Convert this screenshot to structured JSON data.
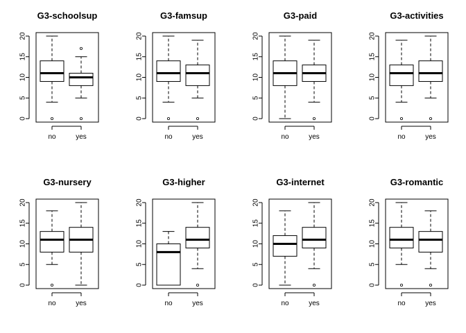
{
  "chart_data": [
    {
      "type": "boxplot",
      "title": "G3-schoolsup",
      "categories": [
        "no",
        "yes"
      ],
      "ylim": [
        0,
        20
      ],
      "yticks": [
        0,
        5,
        10,
        15,
        20
      ],
      "boxes": [
        {
          "category": "no",
          "whisker_low": 4,
          "q1": 9,
          "median": 11,
          "q3": 14,
          "whisker_high": 20,
          "outliers": [
            0
          ]
        },
        {
          "category": "yes",
          "whisker_low": 5,
          "q1": 8,
          "median": 10,
          "q3": 11,
          "whisker_high": 15,
          "outliers": [
            0,
            17
          ]
        }
      ]
    },
    {
      "type": "boxplot",
      "title": "G3-famsup",
      "categories": [
        "no",
        "yes"
      ],
      "ylim": [
        0,
        20
      ],
      "yticks": [
        0,
        5,
        10,
        15,
        20
      ],
      "boxes": [
        {
          "category": "no",
          "whisker_low": 4,
          "q1": 9,
          "median": 11,
          "q3": 14,
          "whisker_high": 20,
          "outliers": [
            0
          ]
        },
        {
          "category": "yes",
          "whisker_low": 5,
          "q1": 8,
          "median": 11,
          "q3": 13,
          "whisker_high": 19,
          "outliers": [
            0
          ]
        }
      ]
    },
    {
      "type": "boxplot",
      "title": "G3-paid",
      "categories": [
        "no",
        "yes"
      ],
      "ylim": [
        0,
        20
      ],
      "yticks": [
        0,
        5,
        10,
        15,
        20
      ],
      "boxes": [
        {
          "category": "no",
          "whisker_low": 0,
          "q1": 8,
          "median": 11,
          "q3": 14,
          "whisker_high": 20,
          "outliers": []
        },
        {
          "category": "yes",
          "whisker_low": 4,
          "q1": 9,
          "median": 11,
          "q3": 13,
          "whisker_high": 19,
          "outliers": [
            0
          ]
        }
      ]
    },
    {
      "type": "boxplot",
      "title": "G3-activities",
      "categories": [
        "no",
        "yes"
      ],
      "ylim": [
        0,
        20
      ],
      "yticks": [
        0,
        5,
        10,
        15,
        20
      ],
      "boxes": [
        {
          "category": "no",
          "whisker_low": 4,
          "q1": 8,
          "median": 11,
          "q3": 13,
          "whisker_high": 19,
          "outliers": [
            0
          ]
        },
        {
          "category": "yes",
          "whisker_low": 5,
          "q1": 9,
          "median": 11,
          "q3": 14,
          "whisker_high": 20,
          "outliers": [
            0
          ]
        }
      ]
    },
    {
      "type": "boxplot",
      "title": "G3-nursery",
      "categories": [
        "no",
        "yes"
      ],
      "ylim": [
        0,
        20
      ],
      "yticks": [
        0,
        5,
        10,
        15,
        20
      ],
      "boxes": [
        {
          "category": "no",
          "whisker_low": 5,
          "q1": 8,
          "median": 11,
          "q3": 13,
          "whisker_high": 18,
          "outliers": [
            0
          ]
        },
        {
          "category": "yes",
          "whisker_low": 0,
          "q1": 8,
          "median": 11,
          "q3": 14,
          "whisker_high": 20,
          "outliers": []
        }
      ]
    },
    {
      "type": "boxplot",
      "title": "G3-higher",
      "categories": [
        "no",
        "yes"
      ],
      "ylim": [
        0,
        20
      ],
      "yticks": [
        0,
        5,
        10,
        15,
        20
      ],
      "boxes": [
        {
          "category": "no",
          "whisker_low": 0,
          "q1": 0,
          "median": 8,
          "q3": 10,
          "whisker_high": 13,
          "outliers": []
        },
        {
          "category": "yes",
          "whisker_low": 4,
          "q1": 9,
          "median": 11,
          "q3": 14,
          "whisker_high": 20,
          "outliers": [
            0
          ]
        }
      ]
    },
    {
      "type": "boxplot",
      "title": "G3-internet",
      "categories": [
        "no",
        "yes"
      ],
      "ylim": [
        0,
        20
      ],
      "yticks": [
        0,
        5,
        10,
        15,
        20
      ],
      "boxes": [
        {
          "category": "no",
          "whisker_low": 0,
          "q1": 7,
          "median": 10,
          "q3": 12,
          "whisker_high": 18,
          "outliers": []
        },
        {
          "category": "yes",
          "whisker_low": 4,
          "q1": 9,
          "median": 11,
          "q3": 14,
          "whisker_high": 20,
          "outliers": [
            0
          ]
        }
      ]
    },
    {
      "type": "boxplot",
      "title": "G3-romantic",
      "categories": [
        "no",
        "yes"
      ],
      "ylim": [
        0,
        20
      ],
      "yticks": [
        0,
        5,
        10,
        15,
        20
      ],
      "boxes": [
        {
          "category": "no",
          "whisker_low": 5,
          "q1": 9,
          "median": 11,
          "q3": 14,
          "whisker_high": 20,
          "outliers": [
            0
          ]
        },
        {
          "category": "yes",
          "whisker_low": 4,
          "q1": 8,
          "median": 11,
          "q3": 13,
          "whisker_high": 18,
          "outliers": [
            0
          ]
        }
      ]
    }
  ]
}
